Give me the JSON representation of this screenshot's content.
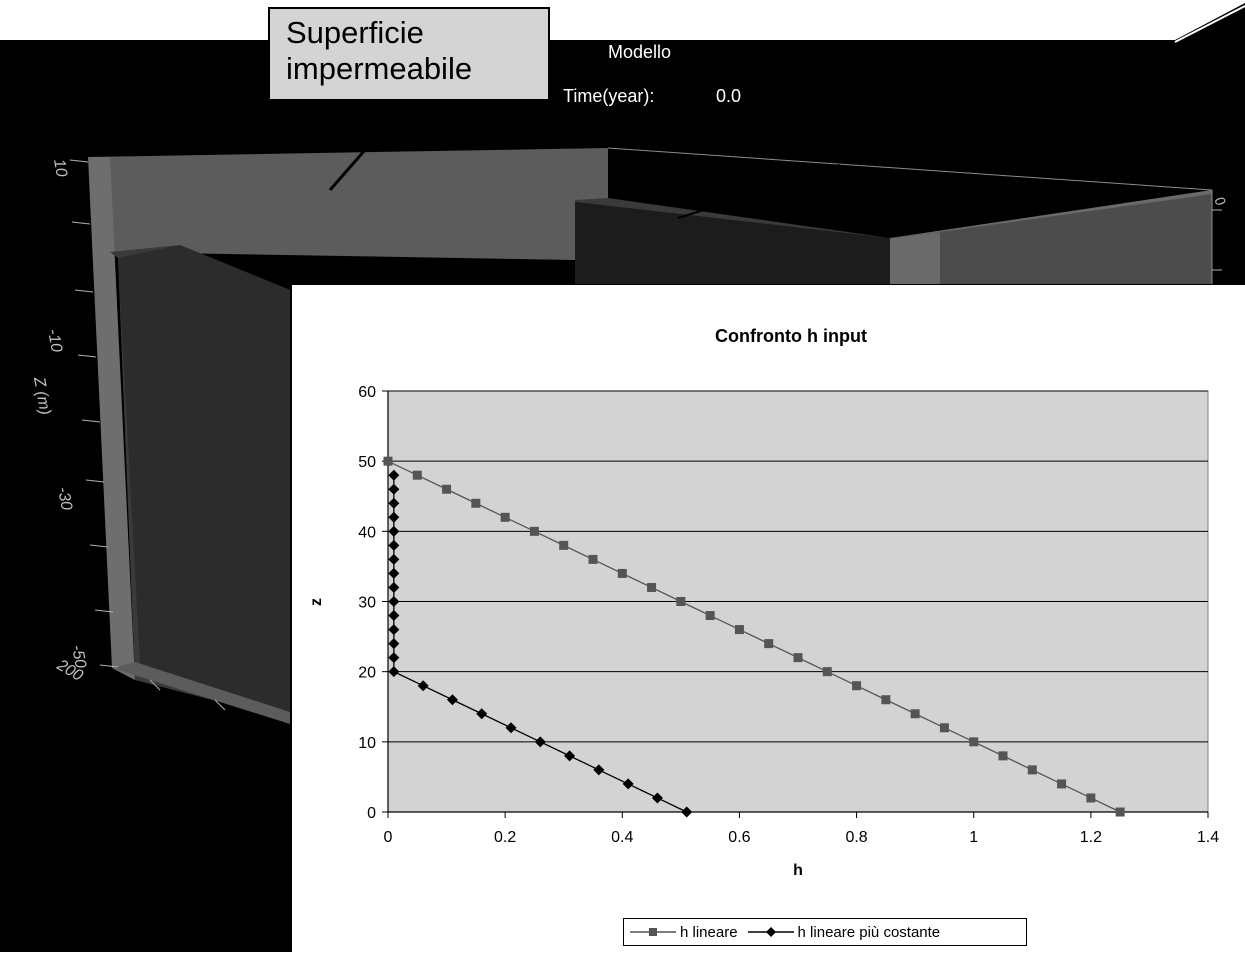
{
  "model_view": {
    "title": "Modello",
    "time_label": "Time(year):",
    "time_value": "0.0",
    "axis_label": "Z (m)",
    "tick_labels": [
      "10",
      "-10",
      "-30",
      "-50",
      "200"
    ],
    "right_tick_label": "0",
    "callout": {
      "line1": "Superficie",
      "line2": "impermeabile"
    },
    "colors": {
      "background": "#000000",
      "wall": "#5c5c5c",
      "wall_front": "#4a4a4a",
      "interior": "#2e2e2e",
      "edge": "#8c8c8c"
    }
  },
  "chart_data": {
    "type": "line",
    "title": "Confronto h input",
    "xlabel": "h",
    "ylabel": "z",
    "xlim": [
      0,
      1.4
    ],
    "ylim": [
      0,
      60
    ],
    "x_ticks": [
      0,
      0.2,
      0.4,
      0.6,
      0.8,
      1,
      1.2,
      1.4
    ],
    "y_ticks": [
      0,
      10,
      20,
      30,
      40,
      50,
      60
    ],
    "x_tick_labels": [
      "0",
      "0.2",
      "0.4",
      "0.6",
      "0.8",
      "1",
      "1.2",
      "1.4"
    ],
    "y_tick_labels": [
      "0",
      "10",
      "20",
      "30",
      "40",
      "50",
      "60"
    ],
    "grid": "horizontal",
    "legend_position": "bottom",
    "plot_background": "#d3d3d3",
    "series": [
      {
        "name": "h lineare",
        "marker": "square",
        "color": "#555555",
        "points": [
          [
            1.25,
            0
          ],
          [
            1.2,
            2
          ],
          [
            1.15,
            4
          ],
          [
            1.1,
            6
          ],
          [
            1.05,
            8
          ],
          [
            1.0,
            10
          ],
          [
            0.95,
            12
          ],
          [
            0.9,
            14
          ],
          [
            0.85,
            16
          ],
          [
            0.8,
            18
          ],
          [
            0.75,
            20
          ],
          [
            0.7,
            22
          ],
          [
            0.65,
            24
          ],
          [
            0.6,
            26
          ],
          [
            0.55,
            28
          ],
          [
            0.5,
            30
          ],
          [
            0.45,
            32
          ],
          [
            0.4,
            34
          ],
          [
            0.35,
            36
          ],
          [
            0.3,
            38
          ],
          [
            0.25,
            40
          ],
          [
            0.2,
            42
          ],
          [
            0.15,
            44
          ],
          [
            0.1,
            46
          ],
          [
            0.05,
            48
          ],
          [
            0.0,
            50
          ]
        ]
      },
      {
        "name": "h lineare più costante",
        "marker": "diamond",
        "color": "#000000",
        "points": [
          [
            0.51,
            0
          ],
          [
            0.46,
            2
          ],
          [
            0.41,
            4
          ],
          [
            0.36,
            6
          ],
          [
            0.31,
            8
          ],
          [
            0.26,
            10
          ],
          [
            0.21,
            12
          ],
          [
            0.16,
            14
          ],
          [
            0.11,
            16
          ],
          [
            0.06,
            18
          ],
          [
            0.01,
            20
          ],
          [
            0.01,
            22
          ],
          [
            0.01,
            24
          ],
          [
            0.01,
            26
          ],
          [
            0.01,
            28
          ],
          [
            0.01,
            30
          ],
          [
            0.01,
            32
          ],
          [
            0.01,
            34
          ],
          [
            0.01,
            36
          ],
          [
            0.01,
            38
          ],
          [
            0.01,
            40
          ],
          [
            0.01,
            42
          ],
          [
            0.01,
            44
          ],
          [
            0.01,
            46
          ],
          [
            0.01,
            48
          ]
        ]
      }
    ]
  }
}
